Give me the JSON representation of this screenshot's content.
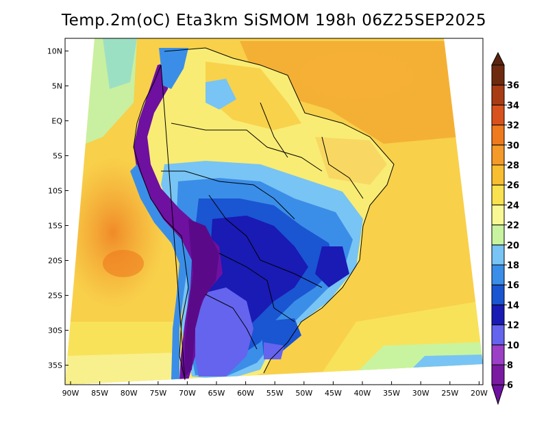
{
  "title": "Temp.2m(oC) Eta3km SiSMOM 198h 06Z25SEP2025",
  "chart_data": {
    "type": "heatmap",
    "title": "Temp.2m(oC) Eta3km SiSMOM 198h 06Z25SEP2025",
    "variable": "Temp.2m",
    "units": "oC",
    "model": "Eta3km SiSMOM",
    "forecast_hour": "198h",
    "valid_time": "06Z25SEP2025",
    "x_ticks": [
      "90W",
      "85W",
      "80W",
      "75W",
      "70W",
      "65W",
      "60W",
      "55W",
      "50W",
      "45W",
      "40W",
      "35W",
      "30W",
      "25W",
      "20W"
    ],
    "y_ticks": [
      "10N",
      "5N",
      "EQ",
      "5S",
      "10S",
      "15S",
      "20S",
      "25S",
      "30S",
      "35S"
    ],
    "xlim": [
      -91,
      -20
    ],
    "ylim": [
      -38,
      11
    ],
    "colorbar": {
      "levels": [
        6,
        8,
        10,
        12,
        14,
        16,
        18,
        20,
        22,
        24,
        26,
        28,
        30,
        32,
        34,
        36
      ],
      "labels": [
        "6",
        "8",
        "10",
        "12",
        "14",
        "16",
        "18",
        "20",
        "22",
        "24",
        "26",
        "28",
        "30",
        "32",
        "34",
        "36"
      ],
      "colors": [
        "#7a1aa0",
        "#9b3fc6",
        "#6464ee",
        "#1a1ab4",
        "#1a55d2",
        "#3a8ee8",
        "#78c4f4",
        "#c8f4a0",
        "#f8f894",
        "#fae150",
        "#f8be32",
        "#f49a2a",
        "#ef7a1e",
        "#d8521e",
        "#a83c14",
        "#6e2a0e"
      ],
      "under_color": "#6e10a0",
      "over_color": "#5a2410"
    }
  }
}
